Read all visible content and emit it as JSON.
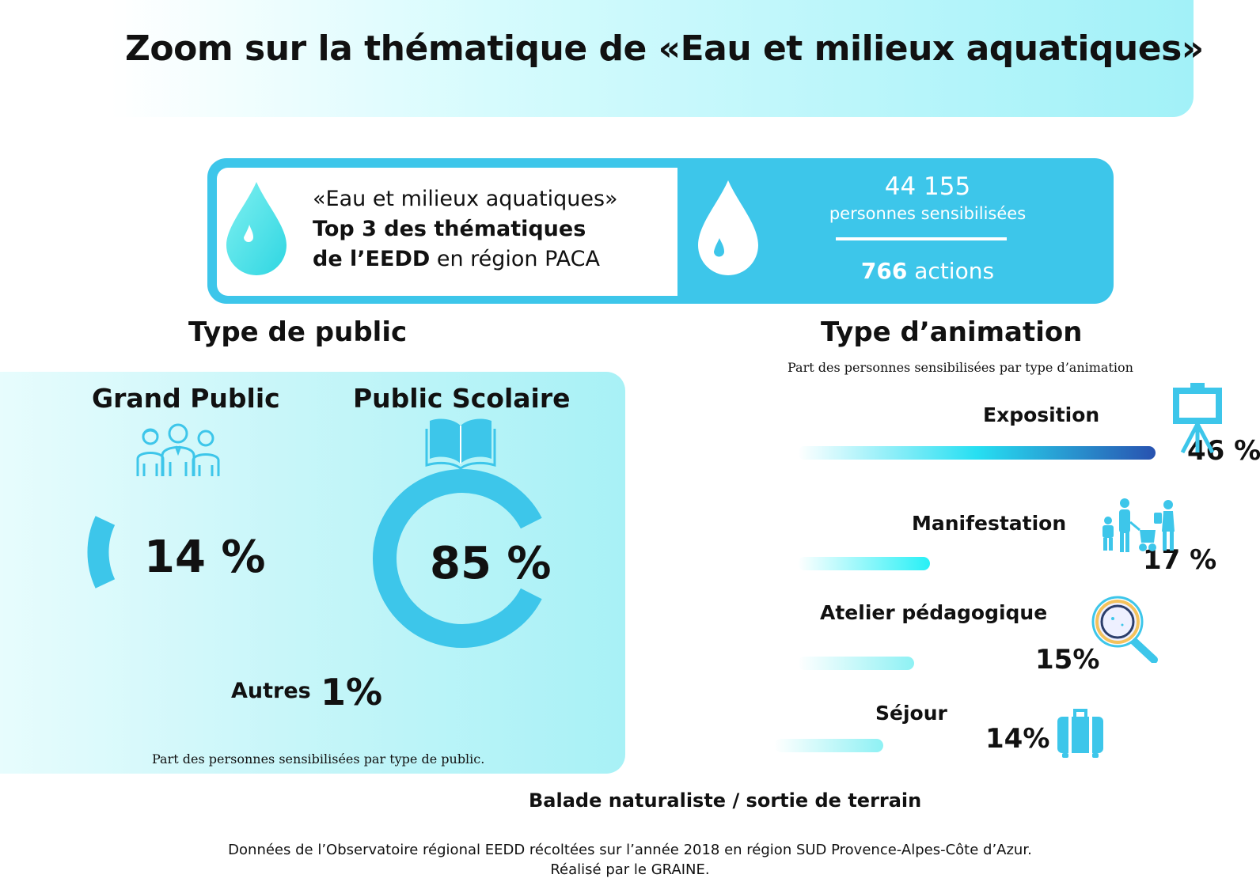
{
  "title": "Zoom sur la thématique de «Eau et milieux aquatiques»",
  "info": {
    "line1": "«Eau et milieux aquatiques»",
    "line2": "Top 3 des thématiques",
    "line3_bold": "de l’EEDD",
    "line3_rest": " en région PACA",
    "people_value": "44 155",
    "people_label": "personnes sensibilisées",
    "actions_value": "766",
    "actions_label": " actions"
  },
  "colors": {
    "accent": "#3dc6ea",
    "ring": "#3dc6ea",
    "dark_blue": "#2852b0",
    "cyan": "#27dff2"
  },
  "public": {
    "title": "Type de public",
    "subtitle": "Part des personnes sensibilisées par type de public.",
    "grand_public_label": "Grand Public",
    "grand_public_pct": "14 %",
    "scolaire_label": "Public Scolaire",
    "scolaire_pct": "85 %",
    "autres_label": "Autres",
    "autres_pct": "1%"
  },
  "animation": {
    "title": "Type d’animation",
    "subtitle": "Part des personnes sensibilisées par type d’animation",
    "extra_label": "Balade naturaliste / sortie de terrain"
  },
  "chart_data": [
    {
      "type": "pie",
      "title": "Type de public",
      "categories": [
        "Grand Public",
        "Public Scolaire",
        "Autres"
      ],
      "values": [
        14,
        85,
        1
      ],
      "value_labels": [
        "14 %",
        "85 %",
        "1%"
      ]
    },
    {
      "type": "bar",
      "title": "Type d’animation",
      "subtitle": "Part des personnes sensibilisées par type d’animation",
      "categories": [
        "Exposition",
        "Manifestation",
        "Atelier pédagogique",
        "Séjour"
      ],
      "values": [
        46,
        17,
        15,
        14
      ],
      "value_labels": [
        "46 %",
        "17 %",
        "15%",
        "14%"
      ],
      "icons": [
        "easel-icon",
        "family-crowd-icon",
        "magnifier-icon",
        "suitcase-icon"
      ]
    }
  ],
  "footer": {
    "line1": "Données de l’Observatoire régional EEDD récoltées sur l’année 2018 en région SUD Provence-Alpes-Côte d’Azur.",
    "line2": "Réalisé par le GRAINE."
  }
}
